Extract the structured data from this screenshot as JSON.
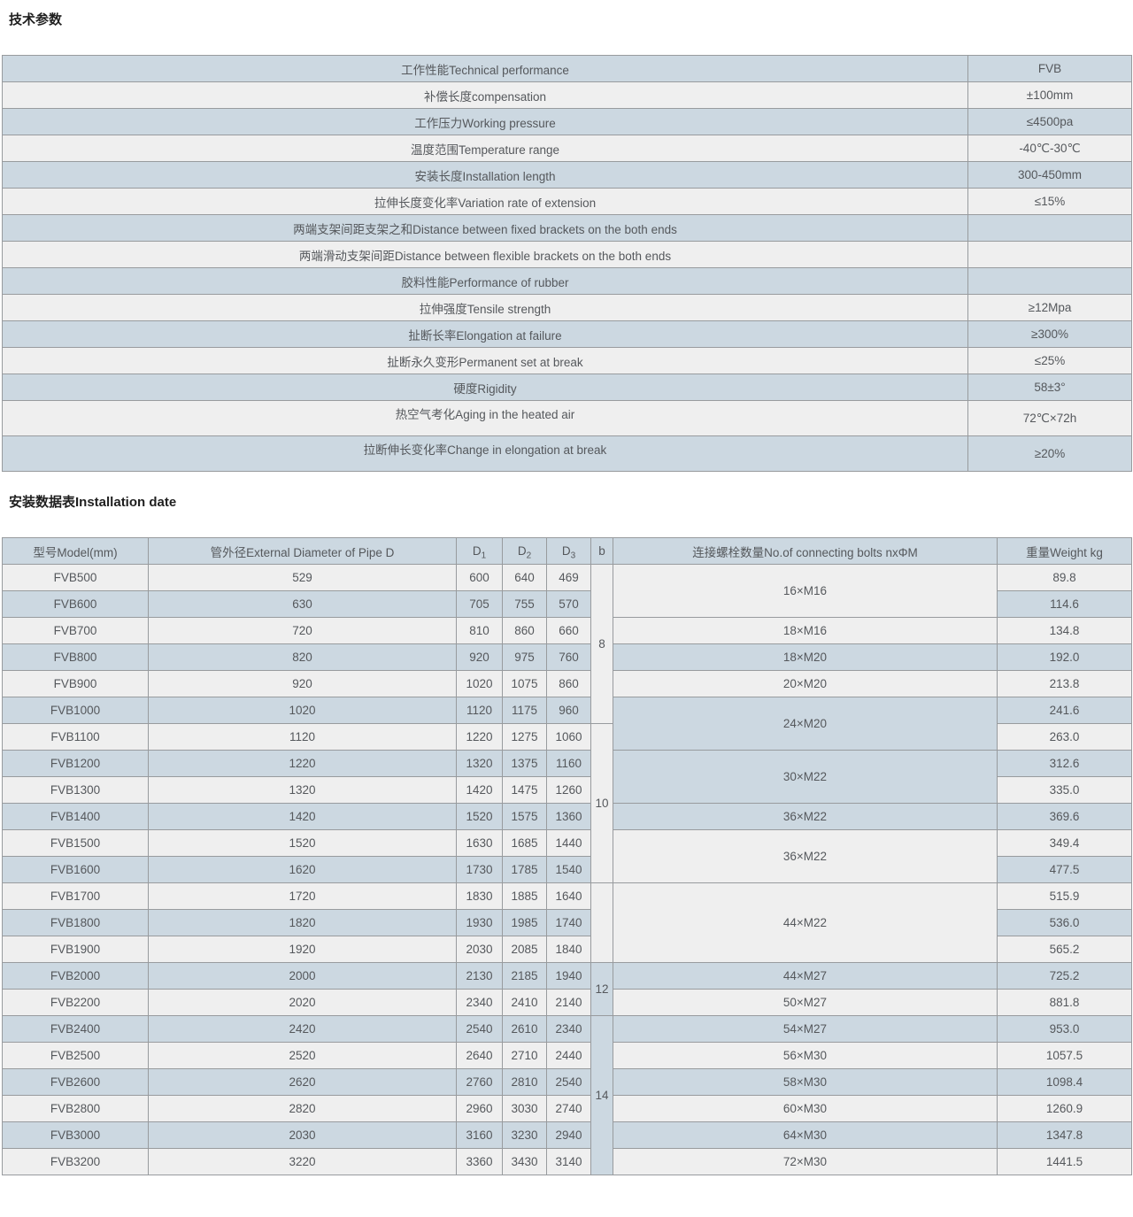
{
  "colors": {
    "stripe_blue": "#ccd8e1",
    "stripe_light": "#efefef",
    "border": "#989b9e",
    "text": "#55585c",
    "title_text": "#1f1f1f"
  },
  "section1": {
    "title": "技术参数"
  },
  "table1": {
    "rows": [
      {
        "label": "工作性能Technical performance",
        "value": "FVB",
        "tall": false
      },
      {
        "label": "补偿长度compensation",
        "value": "±100mm",
        "tall": false
      },
      {
        "label": "工作压力Working pressure",
        "value": "≤4500pa",
        "tall": false
      },
      {
        "label": "温度范围Temperature range",
        "value": "-40℃-30℃",
        "tall": false
      },
      {
        "label": "安装长度Installation length",
        "value": "300-450mm",
        "tall": false
      },
      {
        "label": "拉伸长度变化率Variation rate of extension",
        "value": "≤15%",
        "tall": false
      },
      {
        "label": "两端支架间距支架之和Distance between fixed brackets on the both ends",
        "value": "",
        "tall": false
      },
      {
        "label": "两端滑动支架间距Distance between flexible brackets on the both ends",
        "value": "",
        "tall": false
      },
      {
        "label": "胶料性能Performance of rubber",
        "value": "",
        "tall": false
      },
      {
        "label": "拉伸强度Tensile strength",
        "value": "≥12Mpa",
        "tall": false
      },
      {
        "label": "扯断长率Elongation at failure",
        "value": "≥300%",
        "tall": false
      },
      {
        "label": "扯断永久变形Permanent set at break",
        "value": "≤25%",
        "tall": false
      },
      {
        "label": "硬度Rigidity",
        "value": "58±3°",
        "tall": false
      },
      {
        "label": "热空气考化Aging in the heated air",
        "value": "72℃×72h",
        "tall": true
      },
      {
        "label": "拉断伸长变化率Change in elongation at break",
        "value": "≥20%",
        "tall": true
      }
    ]
  },
  "section2": {
    "title": "安装数据表Installation date"
  },
  "table2": {
    "headers": {
      "model": "型号Model(mm)",
      "diameter": "管外径External Diameter of Pipe D",
      "d1_base": "D",
      "d1_sub": "1",
      "d2_base": "D",
      "d2_sub": "2",
      "d3_base": "D",
      "d3_sub": "3",
      "b": "b",
      "bolts": "连接螺栓数量No.of connecting bolts nxΦM",
      "weight": "重量Weight kg"
    },
    "rows": [
      {
        "model": "FVB500",
        "d": "529",
        "d1": "600",
        "d2": "640",
        "d3": "469",
        "weight": "89.8"
      },
      {
        "model": "FVB600",
        "d": "630",
        "d1": "705",
        "d2": "755",
        "d3": "570",
        "weight": "114.6"
      },
      {
        "model": "FVB700",
        "d": "720",
        "d1": "810",
        "d2": "860",
        "d3": "660",
        "weight": "134.8"
      },
      {
        "model": "FVB800",
        "d": "820",
        "d1": "920",
        "d2": "975",
        "d3": "760",
        "weight": "192.0"
      },
      {
        "model": "FVB900",
        "d": "920",
        "d1": "1020",
        "d2": "1075",
        "d3": "860",
        "weight": "213.8"
      },
      {
        "model": "FVB1000",
        "d": "1020",
        "d1": "1120",
        "d2": "1175",
        "d3": "960",
        "weight": "241.6"
      },
      {
        "model": "FVB1100",
        "d": "1120",
        "d1": "1220",
        "d2": "1275",
        "d3": "1060",
        "weight": "263.0"
      },
      {
        "model": "FVB1200",
        "d": "1220",
        "d1": "1320",
        "d2": "1375",
        "d3": "1160",
        "weight": "312.6"
      },
      {
        "model": "FVB1300",
        "d": "1320",
        "d1": "1420",
        "d2": "1475",
        "d3": "1260",
        "weight": "335.0"
      },
      {
        "model": "FVB1400",
        "d": "1420",
        "d1": "1520",
        "d2": "1575",
        "d3": "1360",
        "weight": "369.6"
      },
      {
        "model": "FVB1500",
        "d": "1520",
        "d1": "1630",
        "d2": "1685",
        "d3": "1440",
        "weight": "349.4"
      },
      {
        "model": "FVB1600",
        "d": "1620",
        "d1": "1730",
        "d2": "1785",
        "d3": "1540",
        "weight": "477.5"
      },
      {
        "model": "FVB1700",
        "d": "1720",
        "d1": "1830",
        "d2": "1885",
        "d3": "1640",
        "weight": "515.9"
      },
      {
        "model": "FVB1800",
        "d": "1820",
        "d1": "1930",
        "d2": "1985",
        "d3": "1740",
        "weight": "536.0"
      },
      {
        "model": "FVB1900",
        "d": "1920",
        "d1": "2030",
        "d2": "2085",
        "d3": "1840",
        "weight": "565.2"
      },
      {
        "model": "FVB2000",
        "d": "2000",
        "d1": "2130",
        "d2": "2185",
        "d3": "1940",
        "weight": "725.2"
      },
      {
        "model": "FVB2200",
        "d": "2020",
        "d1": "2340",
        "d2": "2410",
        "d3": "2140",
        "weight": "881.8"
      },
      {
        "model": "FVB2400",
        "d": "2420",
        "d1": "2540",
        "d2": "2610",
        "d3": "2340",
        "weight": "953.0"
      },
      {
        "model": "FVB2500",
        "d": "2520",
        "d1": "2640",
        "d2": "2710",
        "d3": "2440",
        "weight": "1057.5"
      },
      {
        "model": "FVB2600",
        "d": "2620",
        "d1": "2760",
        "d2": "2810",
        "d3": "2540",
        "weight": "1098.4"
      },
      {
        "model": "FVB2800",
        "d": "2820",
        "d1": "2960",
        "d2": "3030",
        "d3": "2740",
        "weight": "1260.9"
      },
      {
        "model": "FVB3000",
        "d": "2030",
        "d1": "3160",
        "d2": "3230",
        "d3": "2940",
        "weight": "1347.8"
      },
      {
        "model": "FVB3200",
        "d": "3220",
        "d1": "3360",
        "d2": "3430",
        "d3": "3140",
        "weight": "1441.5"
      }
    ],
    "b_spans": [
      {
        "start": 0,
        "span": 6,
        "label": "8"
      },
      {
        "start": 6,
        "span": 6,
        "label": "10"
      },
      {
        "start": 12,
        "span": 3,
        "label": ""
      },
      {
        "start": 15,
        "span": 2,
        "label": "12"
      },
      {
        "start": 17,
        "span": 6,
        "label": "14"
      }
    ],
    "bolt_spans": [
      {
        "start": 0,
        "span": 2,
        "label": "16×M16"
      },
      {
        "start": 2,
        "span": 1,
        "label": "18×M16"
      },
      {
        "start": 3,
        "span": 1,
        "label": "18×M20"
      },
      {
        "start": 4,
        "span": 1,
        "label": "20×M20"
      },
      {
        "start": 5,
        "span": 2,
        "label": "24×M20"
      },
      {
        "start": 7,
        "span": 2,
        "label": "30×M22"
      },
      {
        "start": 9,
        "span": 1,
        "label": "36×M22"
      },
      {
        "start": 10,
        "span": 2,
        "label": "36×M22"
      },
      {
        "start": 12,
        "span": 3,
        "label": "44×M22"
      },
      {
        "start": 15,
        "span": 1,
        "label": "44×M27"
      },
      {
        "start": 16,
        "span": 1,
        "label": "50×M27"
      },
      {
        "start": 17,
        "span": 1,
        "label": "54×M27"
      },
      {
        "start": 18,
        "span": 1,
        "label": "56×M30"
      },
      {
        "start": 19,
        "span": 1,
        "label": "58×M30"
      },
      {
        "start": 20,
        "span": 1,
        "label": "60×M30"
      },
      {
        "start": 21,
        "span": 1,
        "label": "64×M30"
      },
      {
        "start": 22,
        "span": 1,
        "label": "72×M30"
      }
    ]
  }
}
